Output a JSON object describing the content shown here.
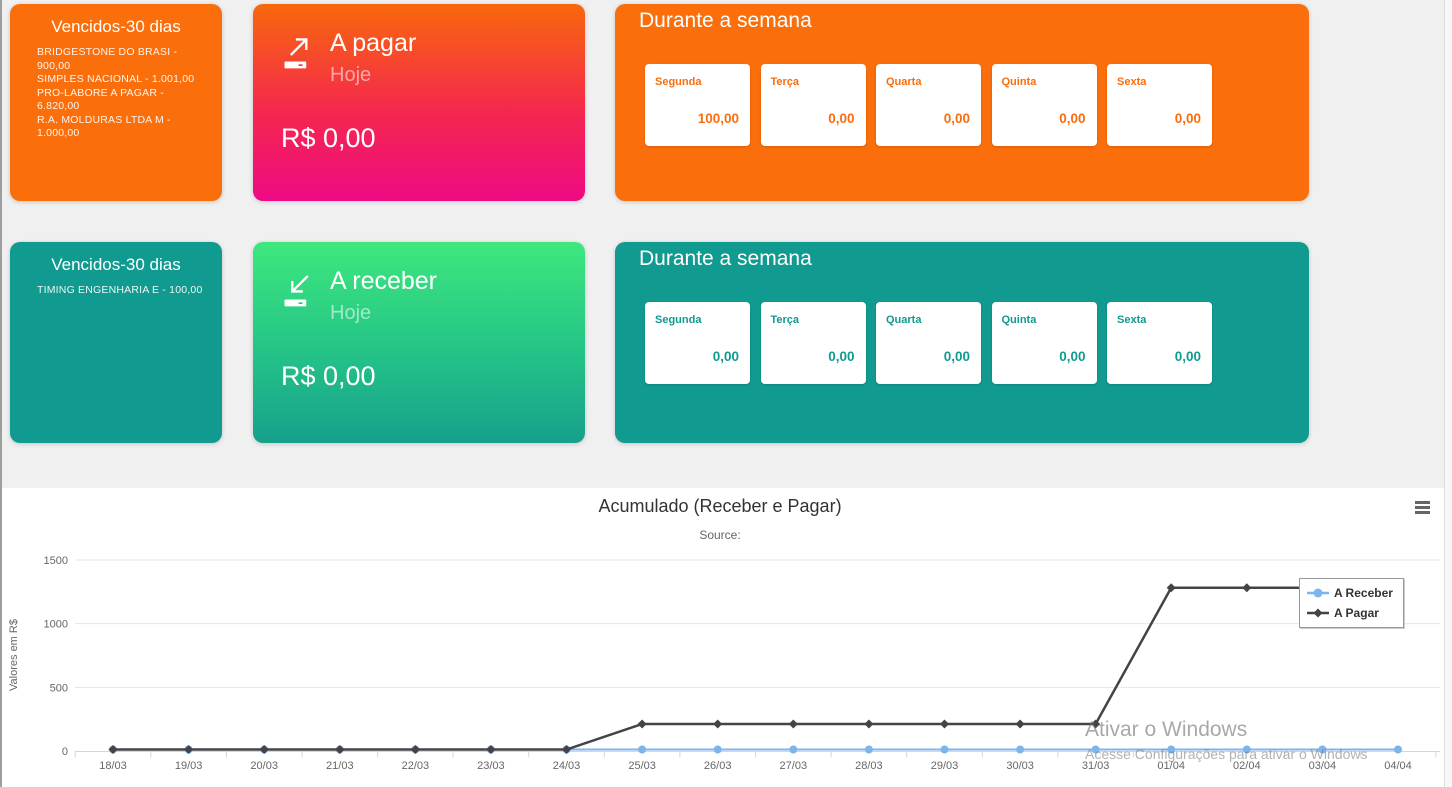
{
  "cards": {
    "vencidos_pagar": {
      "title": "Vencidos-30 dias",
      "items": [
        "BRIDGESTONE DO BRASI - 900,00",
        "SIMPLES NACIONAL - 1.001,00",
        "PRO-LABORE A PAGAR - 6.820,00",
        "R.A. MOLDURAS LTDA M - 1.000,00"
      ],
      "color": "#fa6e0b"
    },
    "a_pagar": {
      "title": "A pagar",
      "subtitle": "Hoje",
      "value": "R$ 0,00",
      "icon": "money-out-arrow-icon",
      "gradient_top": "#f8680c",
      "gradient_bottom": "#ee0a84"
    },
    "semana_pagar": {
      "title": "Durante a semana",
      "days": [
        {
          "label": "Segunda",
          "value": "100,00"
        },
        {
          "label": "Terça",
          "value": "0,00"
        },
        {
          "label": "Quarta",
          "value": "0,00"
        },
        {
          "label": "Quinta",
          "value": "0,00"
        },
        {
          "label": "Sexta",
          "value": "0,00"
        }
      ],
      "color": "#fa6e0b"
    },
    "vencidos_receber": {
      "title": "Vencidos-30 dias",
      "items": [
        "TIMING ENGENHARIA E - 100,00"
      ],
      "color": "#119a8f"
    },
    "a_receber": {
      "title": "A receber",
      "subtitle": "Hoje",
      "value": "R$ 0,00",
      "icon": "money-in-arrow-icon",
      "gradient_top": "#3ee87d",
      "gradient_bottom": "#17a08c"
    },
    "semana_receber": {
      "title": "Durante a semana",
      "days": [
        {
          "label": "Segunda",
          "value": "0,00"
        },
        {
          "label": "Terça",
          "value": "0,00"
        },
        {
          "label": "Quarta",
          "value": "0,00"
        },
        {
          "label": "Quinta",
          "value": "0,00"
        },
        {
          "label": "Sexta",
          "value": "0,00"
        }
      ],
      "color": "#119a8f"
    }
  },
  "chart_data": {
    "type": "line",
    "title": "Acumulado (Receber e Pagar)",
    "subtitle": "Source:",
    "ylabel": "Valores em R$",
    "xlabel": "",
    "categories": [
      "18/03",
      "19/03",
      "20/03",
      "21/03",
      "22/03",
      "23/03",
      "24/03",
      "25/03",
      "26/03",
      "27/03",
      "28/03",
      "29/03",
      "30/03",
      "31/03",
      "01/04",
      "02/04",
      "03/04",
      "04/04"
    ],
    "series": [
      {
        "name": "A Receber",
        "color": "#7cb5ec",
        "marker": "circle",
        "values": [
          0,
          0,
          0,
          0,
          0,
          0,
          0,
          0,
          0,
          0,
          0,
          0,
          0,
          0,
          0,
          0,
          0,
          0
        ]
      },
      {
        "name": "A Pagar",
        "color": "#434348",
        "marker": "diamond",
        "values": [
          0,
          0,
          0,
          0,
          0,
          0,
          0,
          200,
          200,
          200,
          200,
          200,
          200,
          200,
          1270,
          1270,
          1270,
          1270
        ]
      }
    ],
    "ylim": [
      0,
      1500
    ],
    "yticks": [
      0,
      500,
      1000,
      1500
    ],
    "grid": true,
    "legend_position": "right",
    "context_menu": "hamburger-icon"
  },
  "watermark": {
    "line1": "Ativar o Windows",
    "line2": "Acesse Configurações para ativar o Windows"
  }
}
